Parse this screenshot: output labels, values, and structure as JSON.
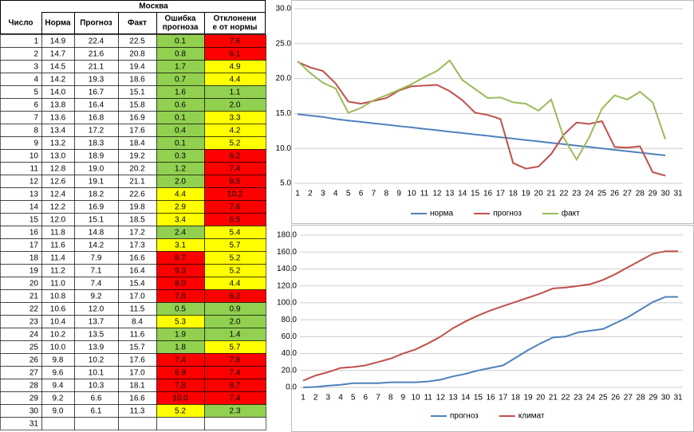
{
  "table": {
    "title": "Москва",
    "columns": [
      [
        "Число"
      ],
      [
        "Норма"
      ],
      [
        "Прогноз"
      ],
      [
        "Факт"
      ],
      [
        "Ошибка",
        "прогноза"
      ],
      [
        "Отклонени",
        "е от нормы"
      ]
    ],
    "rows": [
      [
        "1",
        "14.9",
        "22.4",
        "22.5",
        "0.1",
        "7.6"
      ],
      [
        "2",
        "14.7",
        "21.6",
        "20.8",
        "0.8",
        "6.1"
      ],
      [
        "3",
        "14.5",
        "21.1",
        "19.4",
        "1.7",
        "4.9"
      ],
      [
        "4",
        "14.2",
        "19.3",
        "18.6",
        "0.7",
        "4.4"
      ],
      [
        "5",
        "14.0",
        "16.7",
        "15.1",
        "1.6",
        "1.1"
      ],
      [
        "6",
        "13.8",
        "16.4",
        "15.8",
        "0.6",
        "2.0"
      ],
      [
        "7",
        "13.6",
        "16.8",
        "16.9",
        "0.1",
        "3.3"
      ],
      [
        "8",
        "13.4",
        "17.2",
        "17.6",
        "0.4",
        "4.2"
      ],
      [
        "9",
        "13.2",
        "18.3",
        "18.4",
        "0.1",
        "5.2"
      ],
      [
        "10",
        "13.0",
        "18.9",
        "19.2",
        "0.3",
        "6.2"
      ],
      [
        "11",
        "12.8",
        "19.0",
        "20.2",
        "1.2",
        "7.4"
      ],
      [
        "12",
        "12.6",
        "19.1",
        "21.1",
        "2.0",
        "8.5"
      ],
      [
        "13",
        "12.4",
        "18.2",
        "22.6",
        "4.4",
        "10.2"
      ],
      [
        "14",
        "12.2",
        "16.9",
        "19.8",
        "2.9",
        "7.6"
      ],
      [
        "15",
        "12.0",
        "15.1",
        "18.5",
        "3.4",
        "6.5"
      ],
      [
        "16",
        "11.8",
        "14.8",
        "17.2",
        "2.4",
        "5.4"
      ],
      [
        "17",
        "11.6",
        "14.2",
        "17.3",
        "3.1",
        "5.7"
      ],
      [
        "18",
        "11.4",
        "7.9",
        "16.6",
        "8.7",
        "5.2"
      ],
      [
        "19",
        "11.2",
        "7.1",
        "16.4",
        "9.3",
        "5.2"
      ],
      [
        "20",
        "11.0",
        "7.4",
        "15.4",
        "8.0",
        "4.4"
      ],
      [
        "21",
        "10.8",
        "9.2",
        "17.0",
        "7.8",
        "6.2"
      ],
      [
        "22",
        "10.6",
        "12.0",
        "11.5",
        "0.5",
        "0.9"
      ],
      [
        "23",
        "10.4",
        "13.7",
        "8.4",
        "5.3",
        "2.0"
      ],
      [
        "24",
        "10.2",
        "13.5",
        "11.6",
        "1.9",
        "1.4"
      ],
      [
        "25",
        "10.0",
        "13.9",
        "15.7",
        "1.8",
        "5.7"
      ],
      [
        "26",
        "9.8",
        "10.2",
        "17.6",
        "7.4",
        "7.8"
      ],
      [
        "27",
        "9.6",
        "10.1",
        "17.0",
        "6.9",
        "7.4"
      ],
      [
        "28",
        "9.4",
        "10.3",
        "18.1",
        "7.8",
        "8.7"
      ],
      [
        "29",
        "9.2",
        "6.6",
        "16.6",
        "10.0",
        "7.4"
      ],
      [
        "30",
        "9.0",
        "6.1",
        "11.3",
        "5.2",
        "2.3"
      ],
      [
        "31"
      ]
    ],
    "highlight": [
      [
        "#92d050",
        "#ff0000"
      ],
      [
        "#92d050",
        "#ff0000"
      ],
      [
        "#92d050",
        "#ffff00"
      ],
      [
        "#92d050",
        "#ffff00"
      ],
      [
        "#92d050",
        "#92d050"
      ],
      [
        "#92d050",
        "#92d050"
      ],
      [
        "#92d050",
        "#ffff00"
      ],
      [
        "#92d050",
        "#ffff00"
      ],
      [
        "#92d050",
        "#ffff00"
      ],
      [
        "#92d050",
        "#ff0000"
      ],
      [
        "#92d050",
        "#ff0000"
      ],
      [
        "#92d050",
        "#ff0000"
      ],
      [
        "#ffff00",
        "#ff0000"
      ],
      [
        "#ffff00",
        "#ff0000"
      ],
      [
        "#ffff00",
        "#ff0000"
      ],
      [
        "#92d050",
        "#ffff00"
      ],
      [
        "#ffff00",
        "#ffff00"
      ],
      [
        "#ff0000",
        "#ffff00"
      ],
      [
        "#ff0000",
        "#ffff00"
      ],
      [
        "#ff0000",
        "#ffff00"
      ],
      [
        "#ff0000",
        "#ff0000"
      ],
      [
        "#92d050",
        "#92d050"
      ],
      [
        "#ffff00",
        "#92d050"
      ],
      [
        "#92d050",
        "#92d050"
      ],
      [
        "#92d050",
        "#ffff00"
      ],
      [
        "#ff0000",
        "#ff0000"
      ],
      [
        "#ff0000",
        "#ff0000"
      ],
      [
        "#ff0000",
        "#ff0000"
      ],
      [
        "#ff0000",
        "#ff0000"
      ],
      [
        "#ffff00",
        "#92d050"
      ]
    ]
  },
  "chart_data": [
    {
      "type": "line",
      "categories": [
        1,
        2,
        3,
        4,
        5,
        6,
        7,
        8,
        9,
        10,
        11,
        12,
        13,
        14,
        15,
        16,
        17,
        18,
        19,
        20,
        21,
        22,
        23,
        24,
        25,
        26,
        27,
        28,
        29,
        30,
        31
      ],
      "series": [
        {
          "name": "норма",
          "color": "#4f81bd",
          "values": [
            14.9,
            14.7,
            14.5,
            14.2,
            14.0,
            13.8,
            13.6,
            13.4,
            13.2,
            13.0,
            12.8,
            12.6,
            12.4,
            12.2,
            12.0,
            11.8,
            11.6,
            11.4,
            11.2,
            11.0,
            10.8,
            10.6,
            10.4,
            10.2,
            10.0,
            9.8,
            9.6,
            9.4,
            9.2,
            9.0,
            null
          ]
        },
        {
          "name": "прогноз",
          "color": "#c0504d",
          "values": [
            22.4,
            21.6,
            21.1,
            19.3,
            16.7,
            16.4,
            16.8,
            17.2,
            18.3,
            18.9,
            19.0,
            19.1,
            18.2,
            16.9,
            15.1,
            14.8,
            14.2,
            7.9,
            7.1,
            7.4,
            9.2,
            12.0,
            13.7,
            13.5,
            13.9,
            10.2,
            10.1,
            10.3,
            6.6,
            6.1,
            null
          ]
        },
        {
          "name": "факт",
          "color": "#9bbb59",
          "values": [
            22.5,
            20.8,
            19.4,
            18.6,
            15.1,
            15.8,
            16.9,
            17.6,
            18.4,
            19.2,
            20.2,
            21.1,
            22.6,
            19.8,
            18.5,
            17.2,
            17.3,
            16.6,
            16.4,
            15.4,
            17.0,
            11.5,
            8.4,
            11.6,
            15.7,
            17.6,
            17.0,
            18.1,
            16.6,
            11.3,
            null
          ]
        }
      ],
      "ylim": [
        5,
        30
      ],
      "yticks": [
        {
          "value": 5,
          "label": "5.0"
        },
        {
          "value": 10,
          "label": "10.0"
        },
        {
          "value": 15,
          "label": "15.0"
        },
        {
          "value": 20,
          "label": "20.0"
        },
        {
          "value": 25,
          "label": "25.0"
        },
        {
          "value": 30,
          "label": "30.0"
        }
      ],
      "grid": true,
      "legend": "bottom"
    },
    {
      "type": "line",
      "categories": [
        1,
        2,
        3,
        4,
        5,
        6,
        7,
        8,
        9,
        10,
        11,
        12,
        13,
        14,
        15,
        16,
        17,
        18,
        19,
        20,
        21,
        22,
        23,
        24,
        25,
        26,
        27,
        28,
        29,
        30,
        31
      ],
      "series": [
        {
          "name": "прогноз",
          "color": "#4f81bd",
          "values": [
            0,
            0.5,
            2,
            3,
            5,
            5,
            5,
            6,
            6,
            6,
            7,
            9,
            13,
            16,
            20,
            23,
            26,
            35,
            44,
            52,
            59,
            60,
            65,
            67,
            69,
            76,
            83,
            92,
            101,
            107,
            107
          ]
        },
        {
          "name": "климат",
          "color": "#c0504d",
          "values": [
            8,
            14,
            18,
            23,
            24,
            26,
            30,
            34,
            40,
            45,
            52,
            60,
            70,
            78,
            85,
            91,
            96,
            101,
            106,
            111,
            117,
            118,
            120,
            122,
            127,
            134,
            142,
            150,
            158,
            161,
            161
          ]
        }
      ],
      "ylim": [
        0,
        180
      ],
      "yticks": [
        {
          "value": 0,
          "label": "0.0"
        },
        {
          "value": 20,
          "label": "20.0"
        },
        {
          "value": 40,
          "label": "40.0"
        },
        {
          "value": 60,
          "label": "60.0"
        },
        {
          "value": 80,
          "label": "80.0"
        },
        {
          "value": 100,
          "label": "100.0"
        },
        {
          "value": 120,
          "label": "120.0"
        },
        {
          "value": 140,
          "label": "140.0"
        },
        {
          "value": 160,
          "label": "160.0"
        },
        {
          "value": 180,
          "label": "180.0"
        }
      ],
      "grid": true,
      "legend": "bottom"
    }
  ]
}
